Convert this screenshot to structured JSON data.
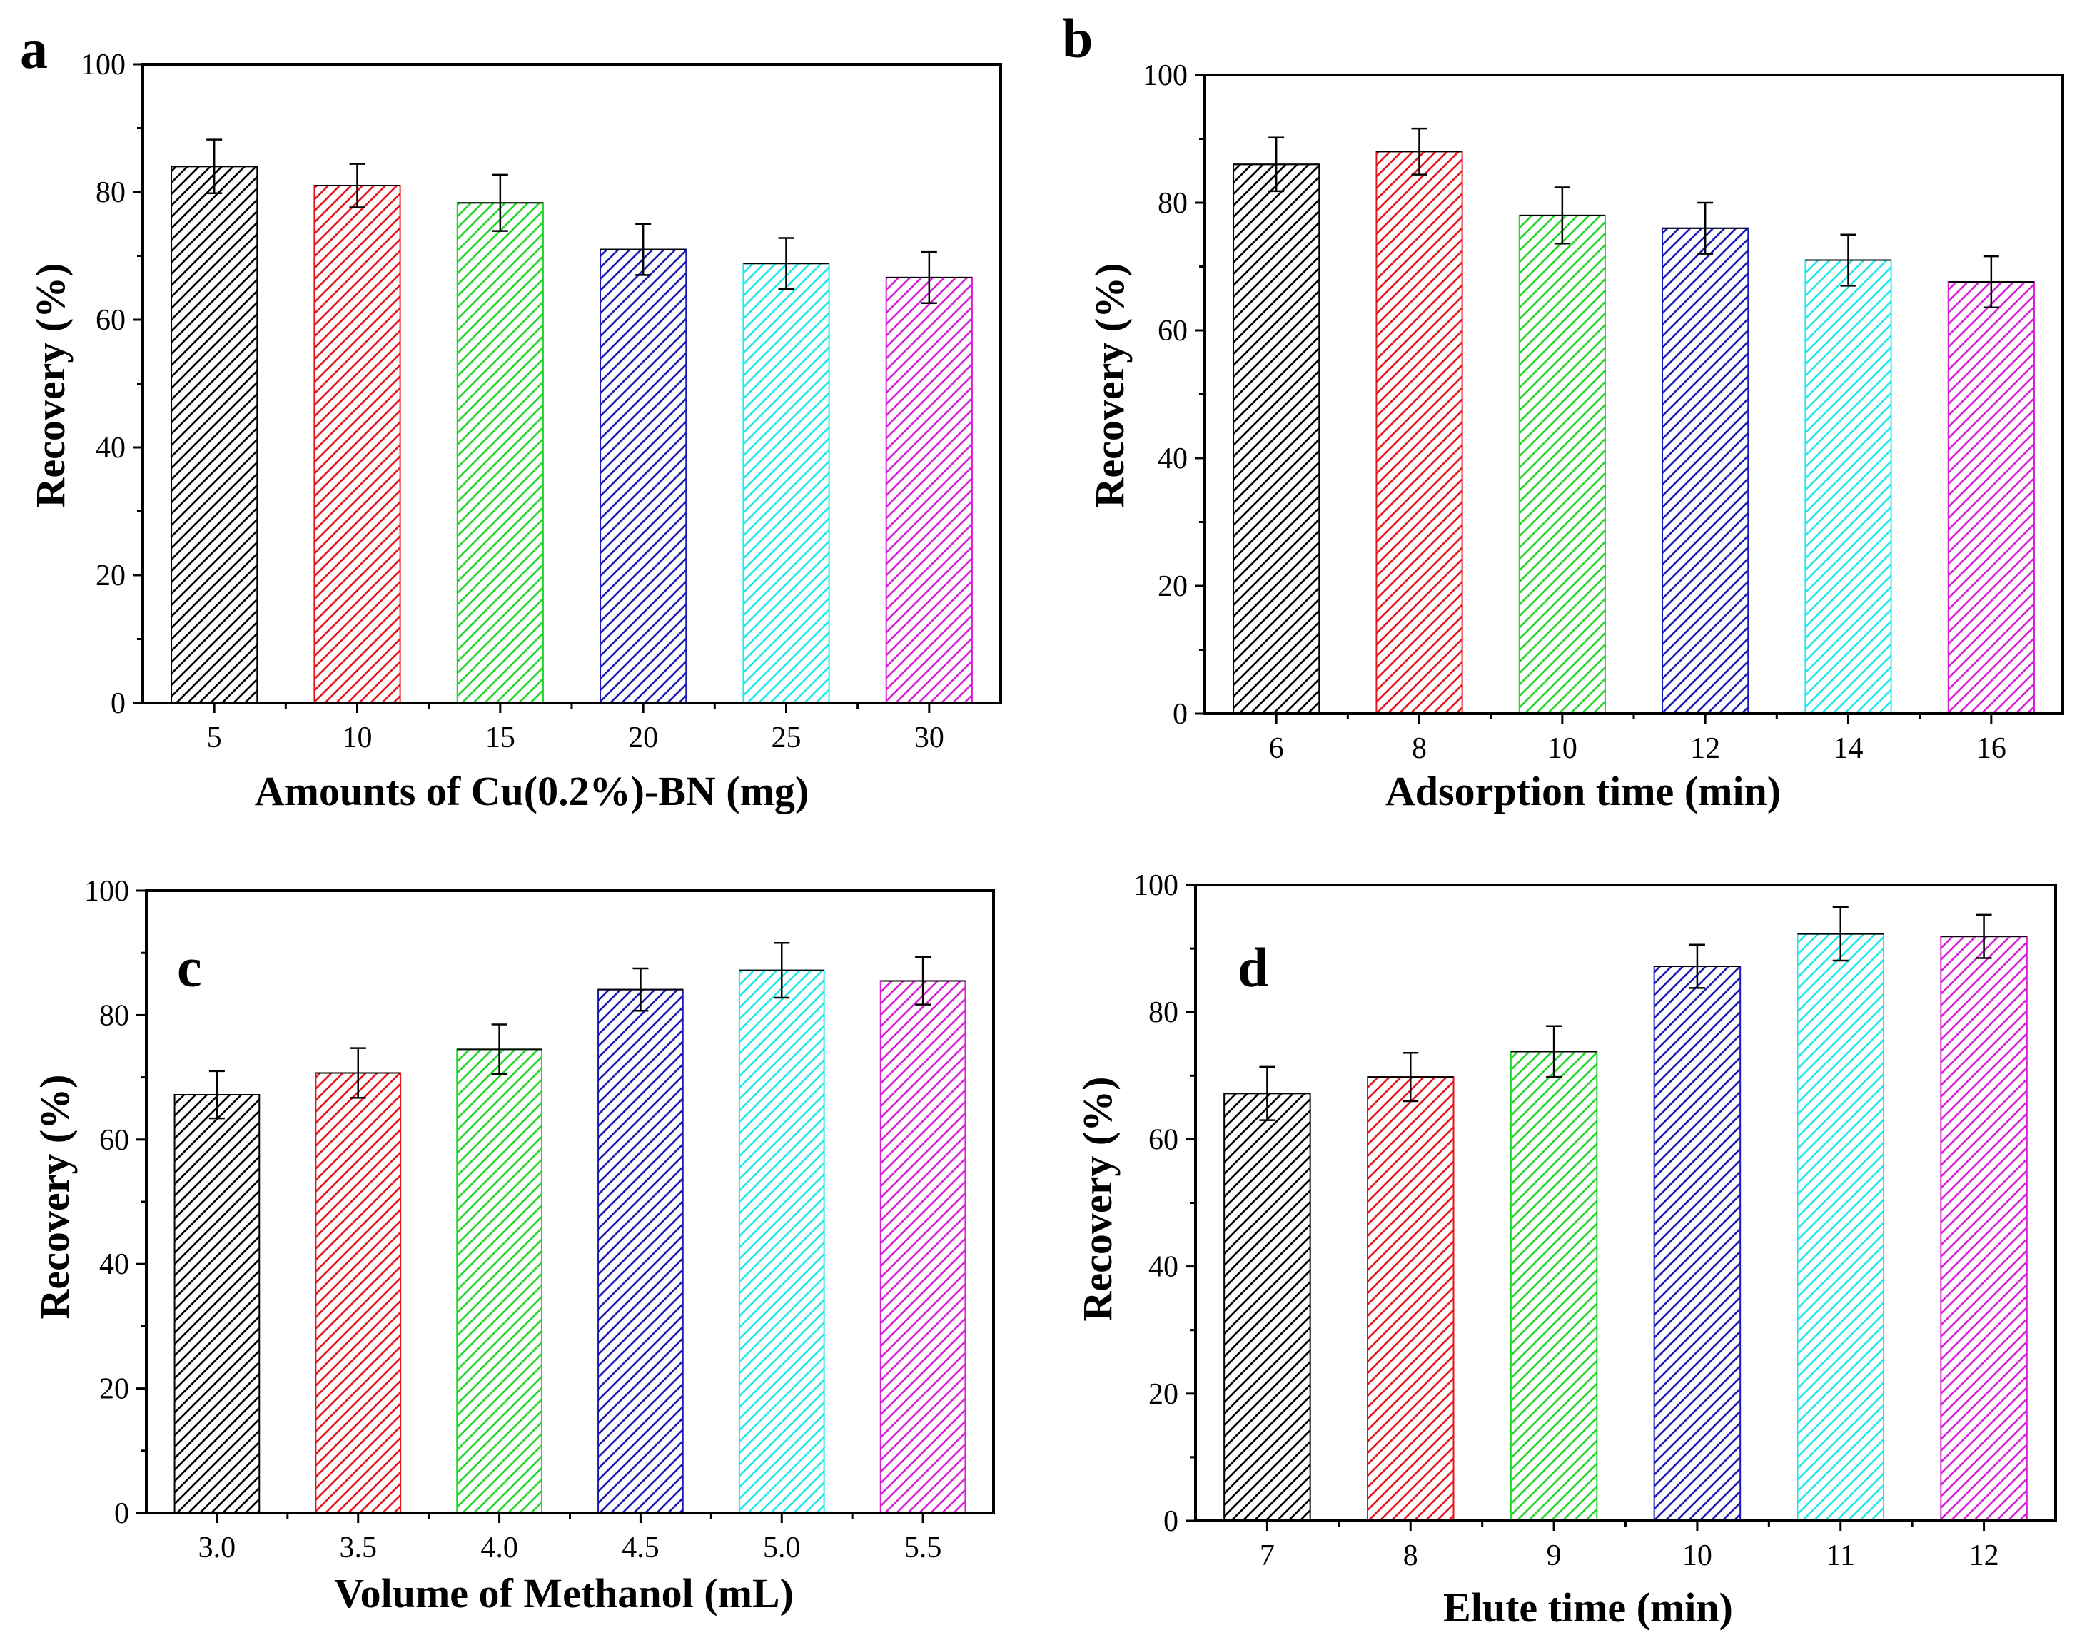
{
  "figure": {
    "colors": {
      "palette": [
        "#000000",
        "#e8141c",
        "#22d629",
        "#1a1ab4",
        "#1fe8e8",
        "#d81fd8"
      ],
      "axis": "#000000"
    }
  },
  "chart_data": [
    {
      "id": "a",
      "panel_letter": "a",
      "type": "bar",
      "categories": [
        "5",
        "10",
        "15",
        "20",
        "25",
        "30"
      ],
      "values": [
        84,
        81,
        78.3,
        71,
        68.8,
        66.6
      ],
      "errors": [
        4.2,
        3.4,
        4.4,
        4.0,
        4.0,
        4.0
      ],
      "xlabel": "Amounts of Cu(0.2%)-BN (mg)",
      "ylabel": "Recovery (%)",
      "ylim": [
        0,
        100
      ],
      "yticks": [
        "0",
        "20",
        "40",
        "60",
        "80",
        "100"
      ],
      "grid": false,
      "title": ""
    },
    {
      "id": "b",
      "panel_letter": "b",
      "type": "bar",
      "categories": [
        "6",
        "8",
        "10",
        "12",
        "14",
        "16"
      ],
      "values": [
        86,
        88,
        78,
        76,
        71,
        67.6
      ],
      "errors": [
        4.2,
        3.6,
        4.4,
        4.0,
        4.0,
        4.0
      ],
      "xlabel": "Adsorption time (min)",
      "ylabel": "Recovery  (%)",
      "ylim": [
        0,
        100
      ],
      "yticks": [
        "0",
        "20",
        "40",
        "60",
        "80",
        "100"
      ],
      "grid": false,
      "title": ""
    },
    {
      "id": "c",
      "panel_letter": "c",
      "type": "bar",
      "categories": [
        "3.0",
        "3.5",
        "4.0",
        "4.5",
        "5.0",
        "5.5"
      ],
      "values": [
        67.2,
        70.7,
        74.5,
        84.1,
        87.2,
        85.5
      ],
      "errors": [
        3.8,
        4.0,
        4.0,
        3.4,
        4.4,
        3.8
      ],
      "xlabel": "Volume of  Methanol (mL)",
      "ylabel": "Recovery  (%)",
      "ylim": [
        0,
        100
      ],
      "yticks": [
        "0",
        "20",
        "40",
        "60",
        "80",
        "100"
      ],
      "grid": false,
      "title": ""
    },
    {
      "id": "d",
      "panel_letter": "d",
      "type": "bar",
      "categories": [
        "7",
        "8",
        "9",
        "10",
        "11",
        "12"
      ],
      "values": [
        67.2,
        69.8,
        73.8,
        87.2,
        92.3,
        91.9
      ],
      "errors": [
        4.2,
        3.8,
        4.0,
        3.4,
        4.2,
        3.4
      ],
      "xlabel": "Elute time (min)",
      "ylabel": "Recovery  (%)",
      "ylim": [
        0,
        100
      ],
      "yticks": [
        "0",
        "20",
        "40",
        "60",
        "80",
        "100"
      ],
      "grid": false,
      "title": ""
    }
  ]
}
